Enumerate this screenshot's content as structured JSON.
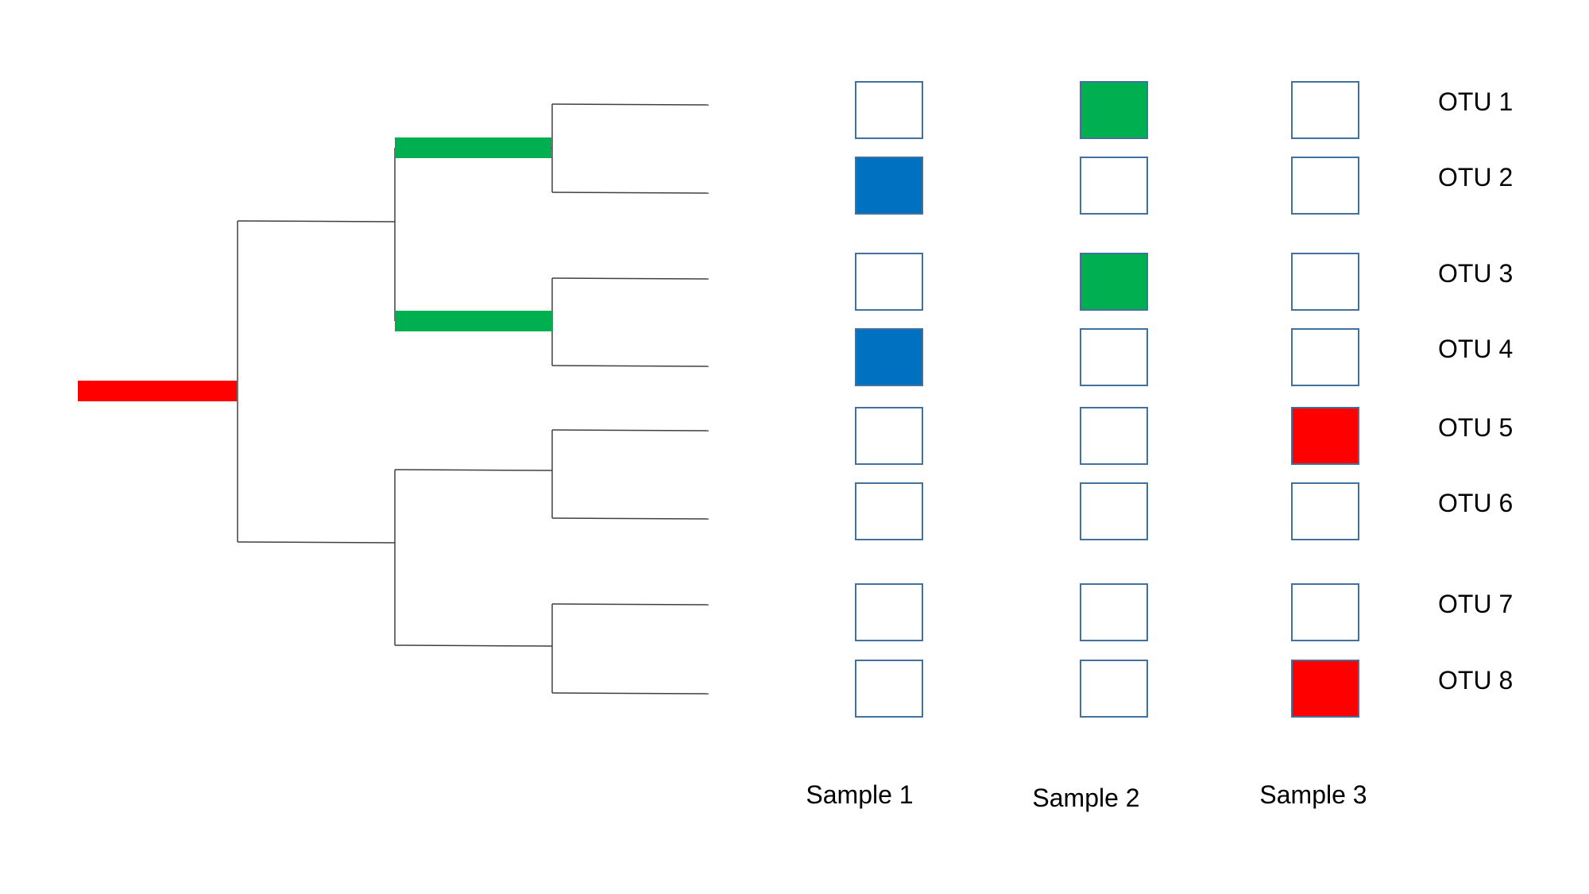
{
  "colors": {
    "red": "#ff0000",
    "green": "#00b050",
    "blue": "#0070c0",
    "empty_border": "#41719c",
    "line": "#404040"
  },
  "otus": [
    {
      "label": "OTU 1",
      "cells": [
        "empty",
        "green",
        "empty"
      ]
    },
    {
      "label": "OTU 2",
      "cells": [
        "blue",
        "empty",
        "empty"
      ]
    },
    {
      "label": "OTU 3",
      "cells": [
        "empty",
        "green",
        "empty"
      ]
    },
    {
      "label": "OTU 4",
      "cells": [
        "blue",
        "empty",
        "empty"
      ]
    },
    {
      "label": "OTU 5",
      "cells": [
        "empty",
        "empty",
        "red"
      ]
    },
    {
      "label": "OTU 6",
      "cells": [
        "empty",
        "empty",
        "empty"
      ]
    },
    {
      "label": "OTU 7",
      "cells": [
        "empty",
        "empty",
        "empty"
      ]
    },
    {
      "label": "OTU 8",
      "cells": [
        "empty",
        "empty",
        "red"
      ]
    }
  ],
  "samples": [
    "Sample 1",
    "Sample 2",
    "Sample 3"
  ],
  "highlighted_branches": [
    {
      "clade": "root",
      "color": "red"
    },
    {
      "clade": "OTU 1 + OTU 2",
      "color": "green"
    },
    {
      "clade": "OTU 3 + OTU 4",
      "color": "green"
    }
  ]
}
